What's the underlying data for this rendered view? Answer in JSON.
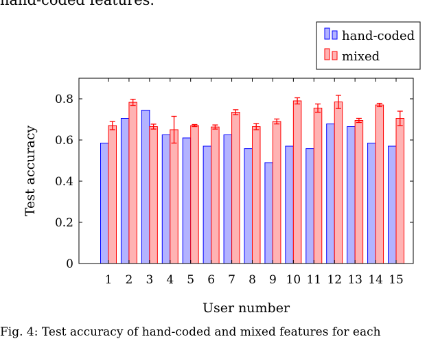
{
  "captions": {
    "top": "hand-coded features.",
    "bottom": "Fig. 4: Test accuracy of hand-coded and mixed features for each"
  },
  "colors": {
    "hand_coded_fill": "#b3b3ff",
    "hand_coded_stroke": "#0000ff",
    "mixed_fill": "#ffb3b3",
    "mixed_stroke": "#ff0000"
  },
  "chart_data": {
    "type": "bar",
    "xlabel": "User number",
    "ylabel": "Test accuracy",
    "ylim": [
      0,
      0.9
    ],
    "yticks": [
      0,
      0.2,
      0.4,
      0.6,
      0.8
    ],
    "ytick_labels": [
      "0",
      "0.2",
      "0.4",
      "0.6",
      "0.8"
    ],
    "categories": [
      "1",
      "2",
      "3",
      "4",
      "5",
      "6",
      "7",
      "8",
      "9",
      "10",
      "11",
      "12",
      "13",
      "14",
      "15"
    ],
    "legend_position": "top-right, outside plot",
    "grid": false,
    "series": [
      {
        "name": "hand-coded",
        "values": [
          0.585,
          0.705,
          0.745,
          0.625,
          0.61,
          0.57,
          0.625,
          0.558,
          0.49,
          0.57,
          0.558,
          0.678,
          0.665,
          0.585,
          0.57
        ]
      },
      {
        "name": "mixed",
        "values": [
          0.67,
          0.783,
          0.665,
          0.65,
          0.67,
          0.663,
          0.735,
          0.665,
          0.69,
          0.79,
          0.755,
          0.785,
          0.695,
          0.77,
          0.705
        ],
        "error": [
          0.02,
          0.015,
          0.012,
          0.065,
          0.005,
          0.01,
          0.012,
          0.015,
          0.012,
          0.015,
          0.02,
          0.032,
          0.01,
          0.008,
          0.035
        ]
      }
    ]
  }
}
